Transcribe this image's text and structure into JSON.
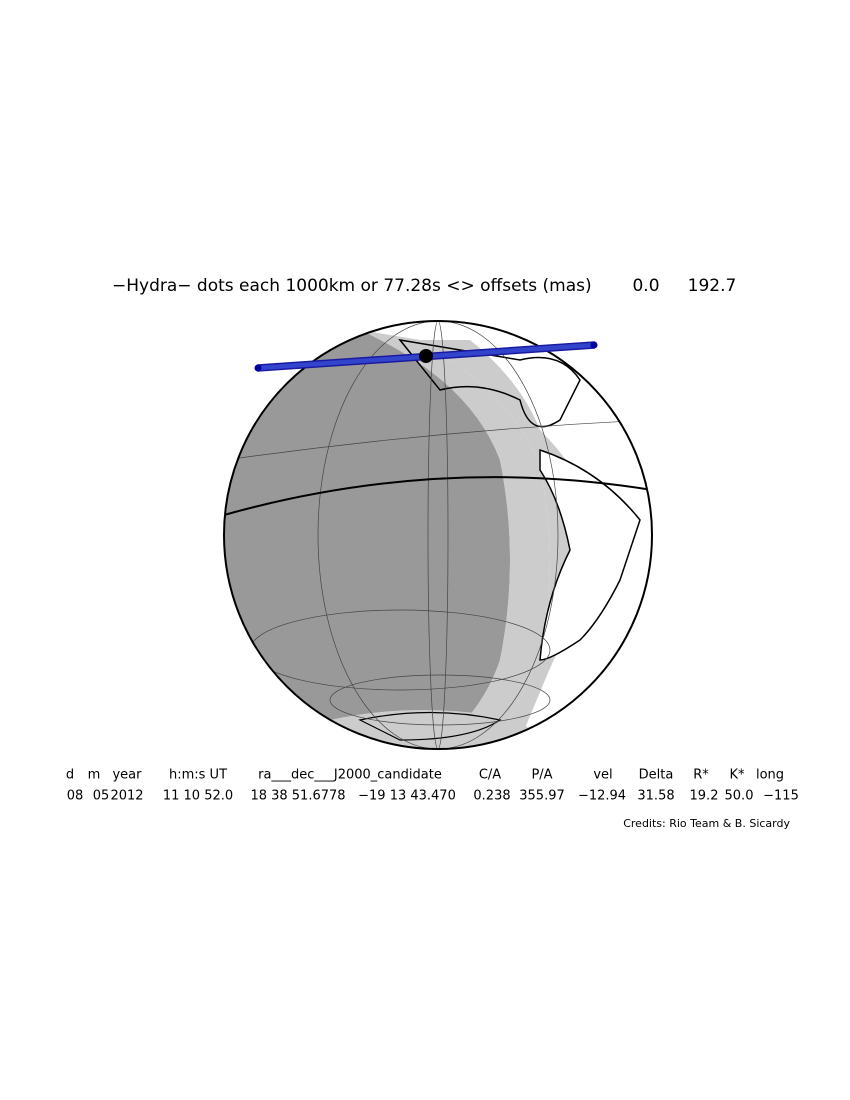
{
  "header": {
    "title": "−Hydra− dots each 1000km or 77.28s <> offsets (mas)",
    "offset_x": "0.0",
    "offset_y": "192.7"
  },
  "table": {
    "headers": [
      "d",
      "m",
      "year",
      "h:m:s UT",
      "ra___dec___J2000_candidate",
      "C/A",
      "P/A",
      "vel",
      "Delta",
      "R*",
      "K*",
      "long"
    ],
    "values": [
      "08",
      "05",
      "2012",
      "11 10 52.0",
      "18 38 51.6778",
      "−19 13 43.470",
      "0.238",
      "355.97",
      "−12.94",
      "31.58",
      "19.2",
      "50.0",
      "−115"
    ]
  },
  "credits": "Credits: Rio Team & B. Sicardy"
}
